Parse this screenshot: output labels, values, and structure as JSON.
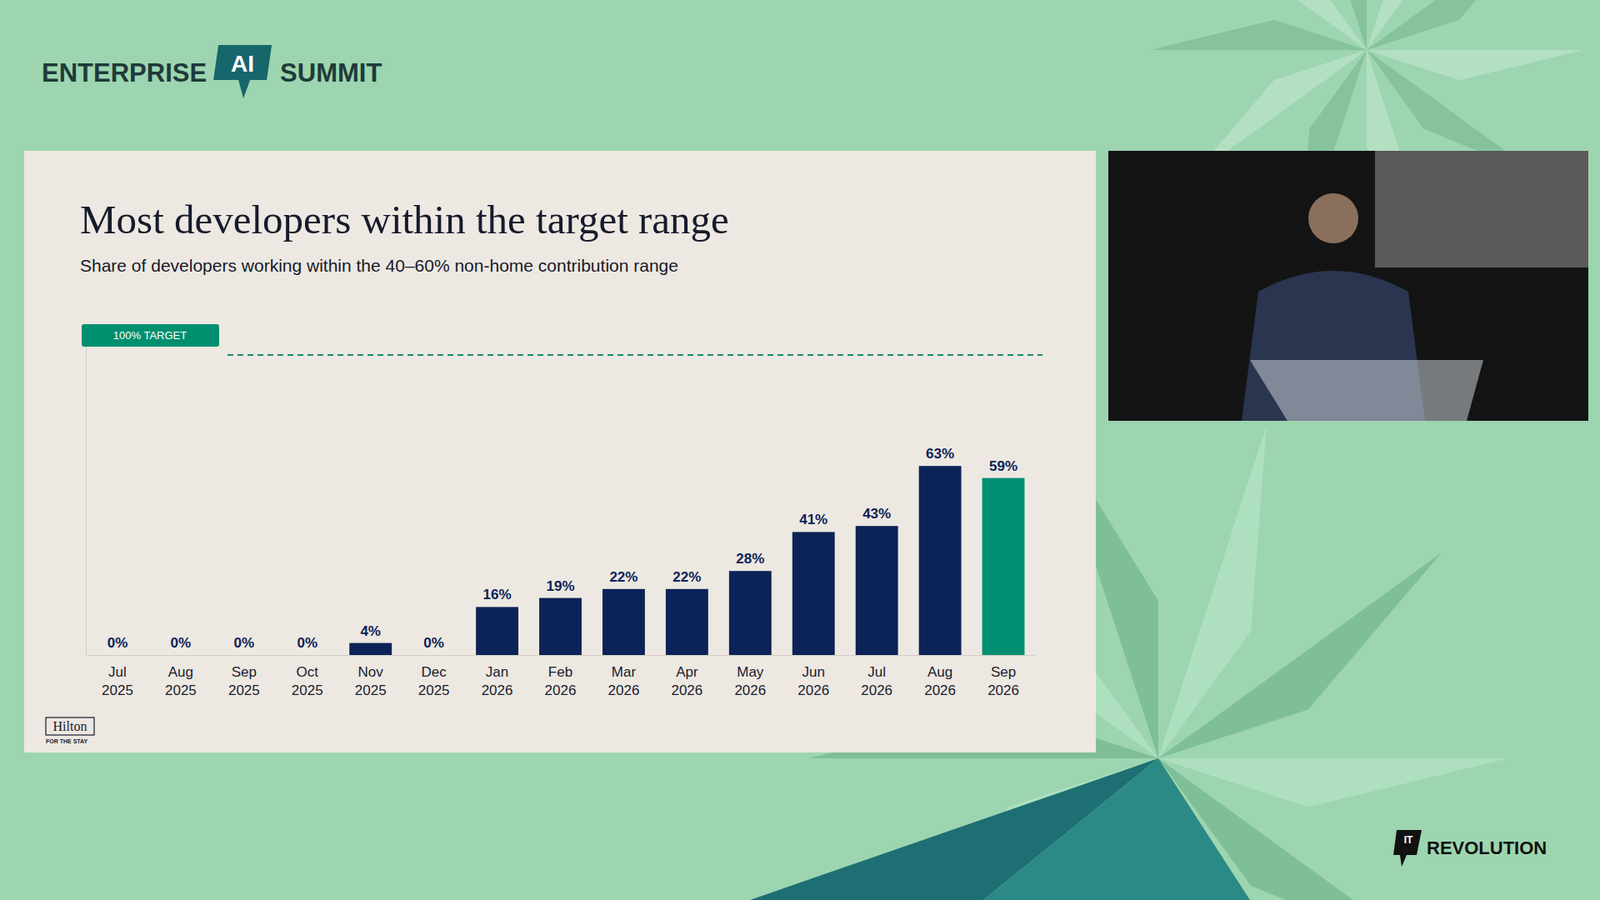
{
  "chart_data": {
    "type": "bar",
    "title": "Most developers within the target range",
    "subtitle": "Share of developers working within the 40–60% non-home contribution range",
    "categories": [
      "Jul 2025",
      "Aug 2025",
      "Sep 2025",
      "Oct 2025",
      "Nov 2025",
      "Dec 2025",
      "Jan 2026",
      "Feb 2026",
      "Mar 2026",
      "Apr 2026",
      "May 2026",
      "Jun 2026",
      "Jul 2026",
      "Aug 2026",
      "Sep 2026"
    ],
    "values": [
      0,
      0,
      0,
      0,
      4,
      0,
      16,
      19,
      22,
      22,
      28,
      41,
      43,
      63,
      59
    ],
    "value_labels": [
      "0%",
      "0%",
      "0%",
      "0%",
      "4%",
      "0%",
      "16%",
      "19%",
      "22%",
      "22%",
      "28%",
      "41%",
      "43%",
      "63%",
      "59%"
    ],
    "colors": [
      "#0b2356",
      "#0b2356",
      "#0b2356",
      "#0b2356",
      "#0b2356",
      "#0b2356",
      "#0b2356",
      "#0b2356",
      "#0b2356",
      "#0b2356",
      "#0b2356",
      "#0b2356",
      "#0b2356",
      "#0b2356",
      "#008f72"
    ],
    "target": {
      "value": 100,
      "label": "100% TARGET"
    },
    "ylim": [
      0,
      105
    ],
    "data_labels": true,
    "tick_labels": "x",
    "grid": false
  },
  "page": {
    "event_left": "ENTERPRISE",
    "event_mark": "AI",
    "event_right": "SUMMIT",
    "slide_logo": "Hilton",
    "slide_logo_tagline": "FOR THE STAY",
    "brand_mark": "IT",
    "brand": "REVOLUTION"
  }
}
